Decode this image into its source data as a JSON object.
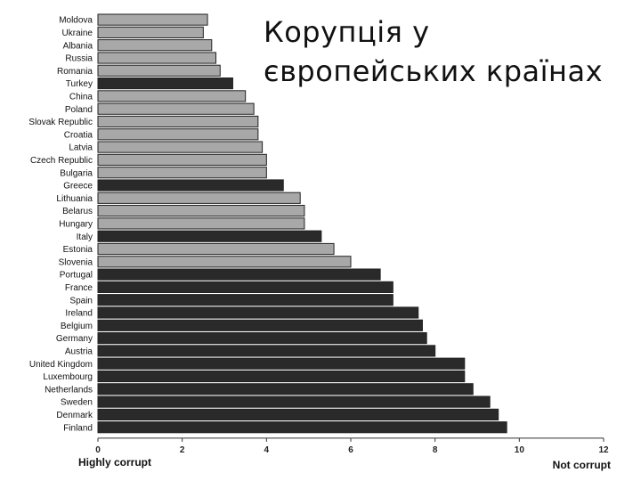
{
  "slide": {
    "title_line1": "Корупція у",
    "title_line2": "європейських країнах"
  },
  "colors": {
    "light_bar": "#a8a8a8",
    "dark_bar": "#2a2a2a",
    "bar_outline": "#222222",
    "axis": "#333333"
  },
  "chart_data": {
    "type": "bar",
    "orientation": "horizontal",
    "categories": [
      "Moldova",
      "Ukraine",
      "Albania",
      "Russia",
      "Romania",
      "Turkey",
      "China",
      "Poland",
      "Slovak Republic",
      "Croatia",
      "Latvia",
      "Czech Republic",
      "Bulgaria",
      "Greece",
      "Lithuania",
      "Belarus",
      "Hungary",
      "Italy",
      "Estonia",
      "Slovenia",
      "Portugal",
      "France",
      "Spain",
      "Ireland",
      "Belgium",
      "Germany",
      "Austria",
      "United Kingdom",
      "Luxembourg",
      "Netherlands",
      "Sweden",
      "Denmark",
      "Finland"
    ],
    "values": [
      2.6,
      2.5,
      2.7,
      2.8,
      2.9,
      3.2,
      3.5,
      3.7,
      3.8,
      3.8,
      3.9,
      4.0,
      4.0,
      4.4,
      4.8,
      4.9,
      4.9,
      5.3,
      5.6,
      6.0,
      6.7,
      7.0,
      7.0,
      7.6,
      7.7,
      7.8,
      8.0,
      8.7,
      8.7,
      8.9,
      9.3,
      9.5,
      9.7
    ],
    "shading": [
      "light",
      "light",
      "light",
      "light",
      "light",
      "dark",
      "light",
      "light",
      "light",
      "light",
      "light",
      "light",
      "light",
      "dark",
      "light",
      "light",
      "light",
      "dark",
      "light",
      "light",
      "dark",
      "dark",
      "dark",
      "dark",
      "dark",
      "dark",
      "dark",
      "dark",
      "dark",
      "dark",
      "dark",
      "dark",
      "dark"
    ],
    "xlim": [
      0,
      12
    ],
    "xticks": [
      "0",
      "2",
      "4",
      "6",
      "8",
      "10",
      "12"
    ],
    "x_left_label": "Highly corrupt",
    "x_right_label": "Not corrupt",
    "title": "",
    "xlabel": "",
    "ylabel": "",
    "grid": false
  }
}
